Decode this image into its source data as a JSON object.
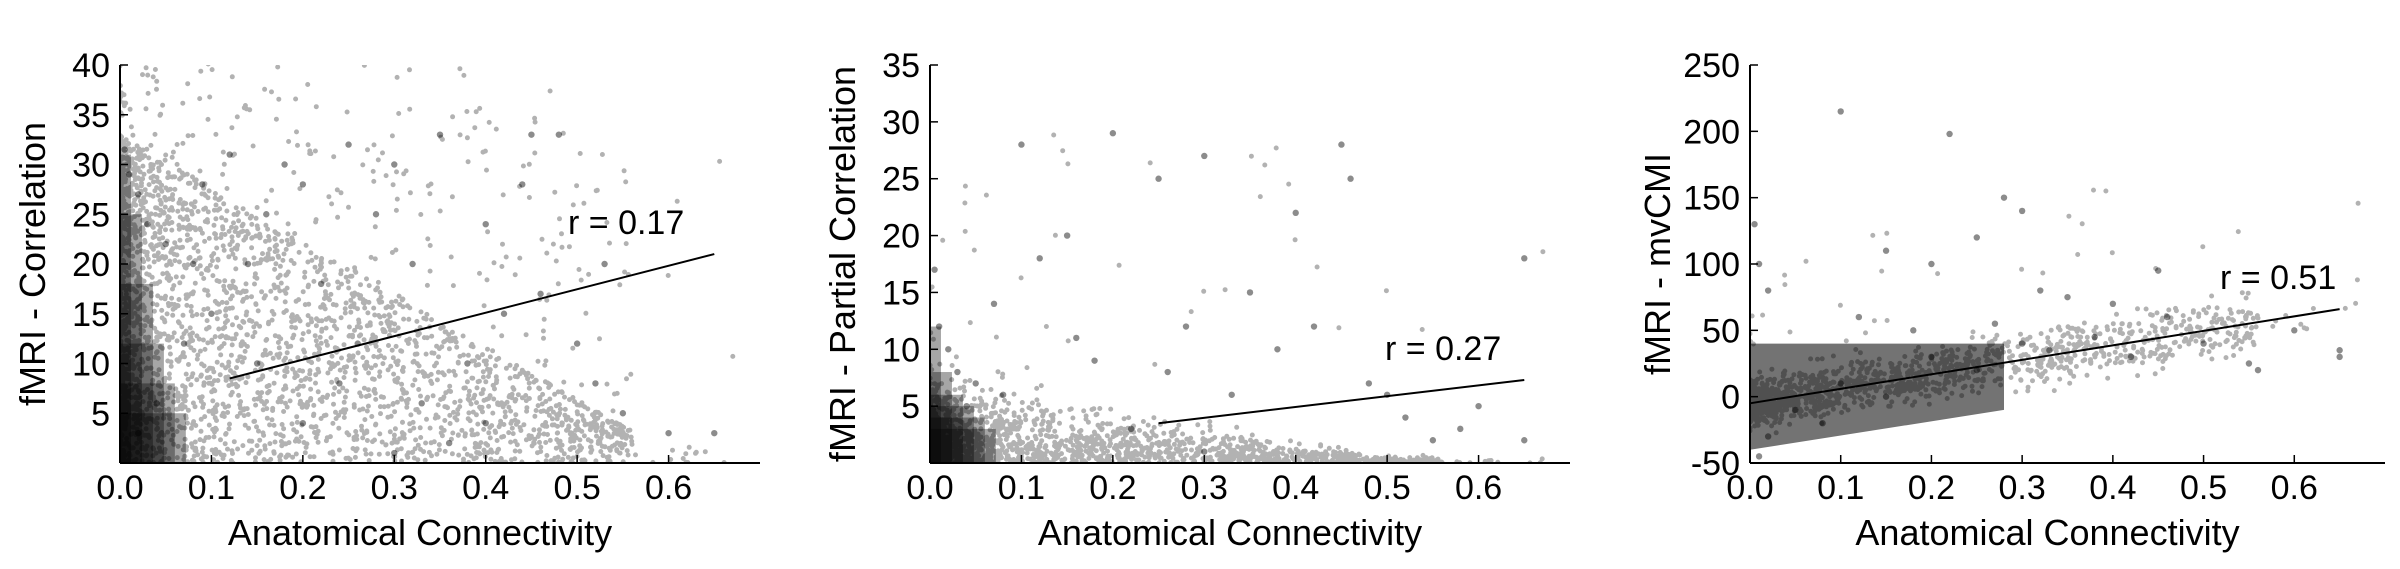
{
  "chart_data": [
    {
      "type": "scatter",
      "xlabel": "Anatomical Connectivity",
      "ylabel": "fMRI - Correlation",
      "xlim": [
        0.0,
        0.7
      ],
      "ylim": [
        0,
        40
      ],
      "xticks": [
        "0.0",
        "0.1",
        "0.2",
        "0.3",
        "0.4",
        "0.5",
        "0.6"
      ],
      "yticks": [
        "5",
        "10",
        "15",
        "20",
        "25",
        "30",
        "35",
        "40"
      ],
      "annotation": "r = 0.17",
      "fit_line": {
        "x": [
          0.12,
          0.65
        ],
        "y": [
          8.5,
          21.0
        ]
      },
      "point_color": "#000000",
      "points": [
        [
          0.005,
          31.5
        ],
        [
          0.01,
          29
        ],
        [
          0.02,
          27
        ],
        [
          0.03,
          24
        ],
        [
          0.05,
          22
        ],
        [
          0.08,
          20
        ],
        [
          0.12,
          31
        ],
        [
          0.18,
          30
        ],
        [
          0.25,
          32
        ],
        [
          0.3,
          30
        ],
        [
          0.35,
          33
        ],
        [
          0.45,
          33
        ],
        [
          0.48,
          33
        ],
        [
          0.44,
          28
        ],
        [
          0.4,
          24
        ],
        [
          0.42,
          15
        ],
        [
          0.5,
          12
        ],
        [
          0.52,
          8
        ],
        [
          0.55,
          5
        ],
        [
          0.6,
          3
        ],
        [
          0.65,
          3
        ],
        [
          0.36,
          2
        ],
        [
          0.3,
          1
        ],
        [
          0.2,
          4
        ],
        [
          0.15,
          10
        ],
        [
          0.1,
          15
        ],
        [
          0.07,
          12
        ],
        [
          0.04,
          6
        ],
        [
          0.02,
          3
        ],
        [
          0.32,
          20
        ],
        [
          0.28,
          25
        ],
        [
          0.22,
          18
        ],
        [
          0.38,
          10
        ],
        [
          0.46,
          17
        ],
        [
          0.53,
          20
        ],
        [
          0.26,
          12
        ],
        [
          0.16,
          25
        ],
        [
          0.33,
          6
        ],
        [
          0.4,
          4
        ],
        [
          0.09,
          28
        ],
        [
          0.2,
          28
        ],
        [
          0.14,
          20
        ],
        [
          0.24,
          8
        ]
      ]
    },
    {
      "type": "scatter",
      "xlabel": "Anatomical Connectivity",
      "ylabel": "fMRI - Partial Correlation",
      "xlim": [
        0.0,
        0.7
      ],
      "ylim": [
        0,
        35
      ],
      "xticks": [
        "0.0",
        "0.1",
        "0.2",
        "0.3",
        "0.4",
        "0.5",
        "0.6"
      ],
      "yticks": [
        "5",
        "10",
        "15",
        "20",
        "25",
        "30",
        "35"
      ],
      "annotation": "r = 0.27",
      "fit_line": {
        "x": [
          0.25,
          0.65
        ],
        "y": [
          3.5,
          7.3
        ]
      },
      "point_color": "#000000",
      "points": [
        [
          0.005,
          17
        ],
        [
          0.01,
          12
        ],
        [
          0.02,
          10
        ],
        [
          0.03,
          8
        ],
        [
          0.05,
          7
        ],
        [
          0.08,
          6
        ],
        [
          0.1,
          28
        ],
        [
          0.2,
          29
        ],
        [
          0.45,
          28
        ],
        [
          0.46,
          25
        ],
        [
          0.4,
          22
        ],
        [
          0.3,
          27
        ],
        [
          0.25,
          25
        ],
        [
          0.15,
          20
        ],
        [
          0.12,
          18
        ],
        [
          0.35,
          15
        ],
        [
          0.5,
          6
        ],
        [
          0.52,
          4
        ],
        [
          0.55,
          2
        ],
        [
          0.65,
          2
        ],
        [
          0.65,
          18
        ],
        [
          0.6,
          5
        ],
        [
          0.3,
          1
        ],
        [
          0.22,
          3
        ],
        [
          0.18,
          9
        ],
        [
          0.28,
          12
        ],
        [
          0.38,
          10
        ],
        [
          0.42,
          12
        ],
        [
          0.07,
          14
        ],
        [
          0.04,
          5
        ],
        [
          0.33,
          6
        ],
        [
          0.26,
          8
        ],
        [
          0.16,
          11
        ],
        [
          0.48,
          7
        ],
        [
          0.58,
          3
        ]
      ]
    },
    {
      "type": "scatter",
      "xlabel": "Anatomical Connectivity",
      "ylabel": "fMRI - mvCMI",
      "xlim": [
        0.0,
        0.7
      ],
      "ylim": [
        -50,
        250
      ],
      "xticks": [
        "0.0",
        "0.1",
        "0.2",
        "0.3",
        "0.4",
        "0.5",
        "0.6"
      ],
      "yticks": [
        "-50",
        "0",
        "50",
        "100",
        "150",
        "200",
        "250"
      ],
      "annotation": "r = 0.51",
      "fit_line": {
        "x": [
          0.0,
          0.65
        ],
        "y": [
          -5,
          66
        ]
      },
      "point_color": "#000000",
      "points": [
        [
          0.005,
          130
        ],
        [
          0.01,
          100
        ],
        [
          0.02,
          80
        ],
        [
          0.1,
          215
        ],
        [
          0.22,
          198
        ],
        [
          0.28,
          150
        ],
        [
          0.3,
          140
        ],
        [
          0.25,
          120
        ],
        [
          0.15,
          110
        ],
        [
          0.2,
          100
        ],
        [
          0.32,
          80
        ],
        [
          0.35,
          75
        ],
        [
          0.4,
          70
        ],
        [
          0.45,
          95
        ],
        [
          0.46,
          60
        ],
        [
          0.5,
          40
        ],
        [
          0.55,
          25
        ],
        [
          0.56,
          20
        ],
        [
          0.65,
          35
        ],
        [
          0.65,
          30
        ],
        [
          0.6,
          50
        ],
        [
          0.3,
          40
        ],
        [
          0.2,
          30
        ],
        [
          0.1,
          10
        ],
        [
          0.05,
          -10
        ],
        [
          0.02,
          -30
        ],
        [
          0.01,
          -45
        ],
        [
          0.08,
          -20
        ],
        [
          0.15,
          0
        ],
        [
          0.25,
          20
        ],
        [
          0.38,
          45
        ],
        [
          0.42,
          30
        ],
        [
          0.12,
          60
        ],
        [
          0.18,
          50
        ],
        [
          0.27,
          55
        ],
        [
          0.33,
          35
        ]
      ]
    }
  ]
}
